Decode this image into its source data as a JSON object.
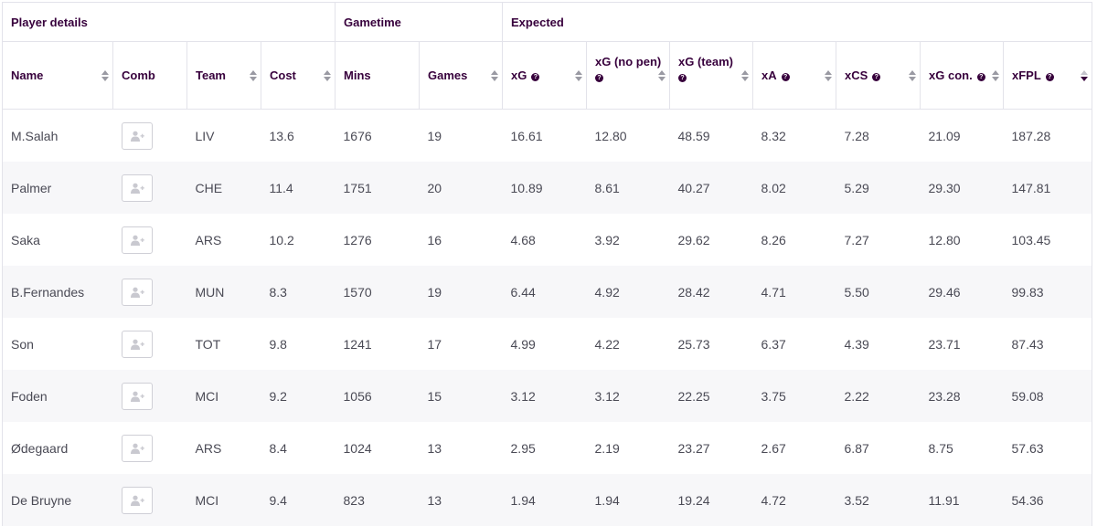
{
  "groups": {
    "player_details": "Player details",
    "gametime": "Gametime",
    "expected": "Expected"
  },
  "columns": {
    "name": "Name",
    "comb": "Comb",
    "team": "Team",
    "cost": "Cost",
    "mins": "Mins",
    "games": "Games",
    "xg": "xG",
    "xg_no_pen": "xG (no pen)",
    "xg_team": "xG (team)",
    "xa": "xA",
    "xcs": "xCS",
    "xg_con": "xG con.",
    "xfpl": "xFPL"
  },
  "help_glyph": "?",
  "sort": {
    "active_column": "xFPL",
    "direction": "descending"
  },
  "icons": {
    "comb_button": "add-user-icon",
    "help": "question-circle-icon"
  },
  "colors": {
    "text_primary": "#37003c",
    "row_alt": "#f7f7f9",
    "border": "#e3e3ea"
  },
  "rows": [
    {
      "name": "M.Salah",
      "team": "LIV",
      "cost": "13.6",
      "mins": "1676",
      "games": "19",
      "xg": "16.61",
      "xg_no_pen": "12.80",
      "xg_team": "48.59",
      "xa": "8.32",
      "xcs": "7.28",
      "xg_con": "21.09",
      "xfpl": "187.28"
    },
    {
      "name": "Palmer",
      "team": "CHE",
      "cost": "11.4",
      "mins": "1751",
      "games": "20",
      "xg": "10.89",
      "xg_no_pen": "8.61",
      "xg_team": "40.27",
      "xa": "8.02",
      "xcs": "5.29",
      "xg_con": "29.30",
      "xfpl": "147.81"
    },
    {
      "name": "Saka",
      "team": "ARS",
      "cost": "10.2",
      "mins": "1276",
      "games": "16",
      "xg": "4.68",
      "xg_no_pen": "3.92",
      "xg_team": "29.62",
      "xa": "8.26",
      "xcs": "7.27",
      "xg_con": "12.80",
      "xfpl": "103.45"
    },
    {
      "name": "B.Fernandes",
      "team": "MUN",
      "cost": "8.3",
      "mins": "1570",
      "games": "19",
      "xg": "6.44",
      "xg_no_pen": "4.92",
      "xg_team": "28.42",
      "xa": "4.71",
      "xcs": "5.50",
      "xg_con": "29.46",
      "xfpl": "99.83"
    },
    {
      "name": "Son",
      "team": "TOT",
      "cost": "9.8",
      "mins": "1241",
      "games": "17",
      "xg": "4.99",
      "xg_no_pen": "4.22",
      "xg_team": "25.73",
      "xa": "6.37",
      "xcs": "4.39",
      "xg_con": "23.71",
      "xfpl": "87.43"
    },
    {
      "name": "Foden",
      "team": "MCI",
      "cost": "9.2",
      "mins": "1056",
      "games": "15",
      "xg": "3.12",
      "xg_no_pen": "3.12",
      "xg_team": "22.25",
      "xa": "3.75",
      "xcs": "2.22",
      "xg_con": "23.28",
      "xfpl": "59.08"
    },
    {
      "name": "Ødegaard",
      "team": "ARS",
      "cost": "8.4",
      "mins": "1024",
      "games": "13",
      "xg": "2.95",
      "xg_no_pen": "2.19",
      "xg_team": "23.27",
      "xa": "2.67",
      "xcs": "6.87",
      "xg_con": "8.75",
      "xfpl": "57.63"
    },
    {
      "name": "De Bruyne",
      "team": "MCI",
      "cost": "9.4",
      "mins": "823",
      "games": "13",
      "xg": "1.94",
      "xg_no_pen": "1.94",
      "xg_team": "19.24",
      "xa": "4.72",
      "xcs": "3.52",
      "xg_con": "11.91",
      "xfpl": "54.36"
    }
  ]
}
